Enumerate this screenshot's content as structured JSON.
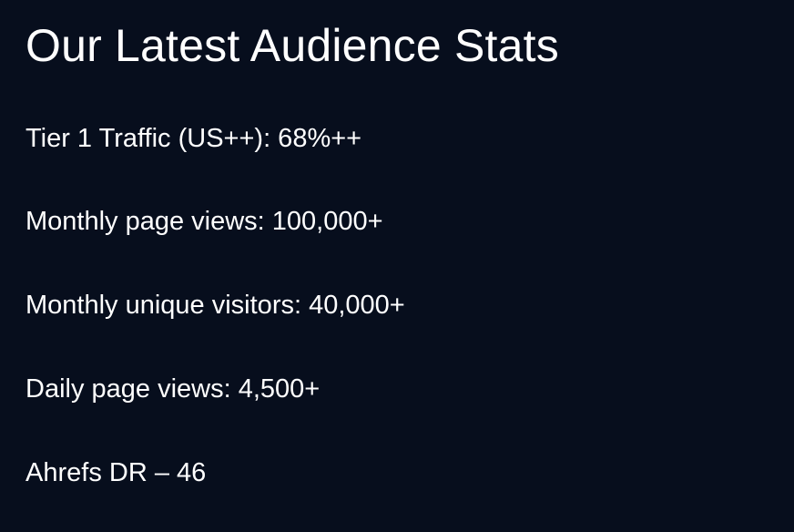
{
  "page": {
    "title": "Our Latest Audience Stats"
  },
  "stats": [
    {
      "text": "Tier 1 Traffic (US++): 68%++"
    },
    {
      "text": "Monthly page views: 100,000+"
    },
    {
      "text": "Monthly unique visitors: 40,000+"
    },
    {
      "text": "Daily page views: 4,500+"
    },
    {
      "text": "Ahrefs DR – 46"
    }
  ],
  "colors": {
    "background": "#070e1d",
    "text": "#ffffff"
  }
}
